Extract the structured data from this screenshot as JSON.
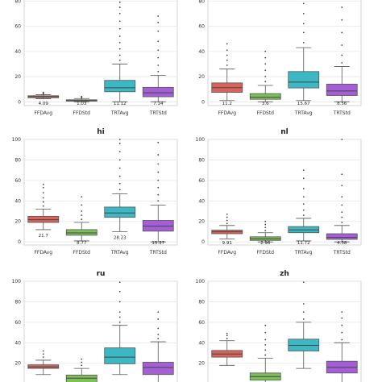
{
  "chart_data": [
    {
      "type": "box",
      "title": "",
      "ylim": [
        -3,
        100
      ],
      "yticks": [
        0,
        20,
        40,
        60,
        80
      ],
      "categories": [
        "FFDAvg",
        "FFDStd",
        "TRTAvg",
        "TRTStd"
      ],
      "colors": [
        "#d9635b",
        "#7fbf5a",
        "#3bb8c4",
        "#a45fd6"
      ],
      "boxes": [
        {
          "med": 4.09,
          "q1": 3.2,
          "q3": 4.8,
          "wlo": 2.4,
          "whi": 5.6,
          "out": [
            6.2,
            6.8,
            7.5
          ]
        },
        {
          "med": 1.03,
          "q1": 0.5,
          "q3": 1.6,
          "wlo": 0,
          "whi": 2.6,
          "out": [
            3.0,
            3.6,
            4.2
          ]
        },
        {
          "med": 11.12,
          "q1": 8.0,
          "q3": 17.0,
          "wlo": 0,
          "whi": 30.0,
          "out": [
            33,
            37,
            42,
            47,
            52,
            58,
            64,
            70,
            75,
            79
          ]
        },
        {
          "med": 7.14,
          "q1": 4.0,
          "q3": 11.5,
          "wlo": 0,
          "whi": 21.0,
          "out": [
            24,
            29,
            35,
            41,
            48,
            56,
            63,
            68
          ]
        }
      ],
      "medlabels": [
        "4.09",
        "1.03",
        "11.12",
        "7.14"
      ]
    },
    {
      "type": "box",
      "title": "",
      "ylim": [
        -3,
        100
      ],
      "yticks": [
        0,
        20,
        40,
        60,
        80
      ],
      "categories": [
        "FFDAvg",
        "FFDStd",
        "TRTAvg",
        "TRTStd"
      ],
      "colors": [
        "#d9635b",
        "#7fbf5a",
        "#3bb8c4",
        "#a45fd6"
      ],
      "boxes": [
        {
          "med": 11.2,
          "q1": 7.5,
          "q3": 15.0,
          "wlo": 1,
          "whi": 26.0,
          "out": [
            29,
            33,
            37,
            41,
            46
          ]
        },
        {
          "med": 3.6,
          "q1": 2.0,
          "q3": 6.5,
          "wlo": 0,
          "whi": 13.0,
          "out": [
            16,
            20,
            25,
            30,
            35,
            40
          ]
        },
        {
          "med": 15.67,
          "q1": 11.0,
          "q3": 24.0,
          "wlo": 1,
          "whi": 43.0,
          "out": [
            47,
            55,
            62,
            70,
            78,
            86,
            94,
            101
          ]
        },
        {
          "med": 8.56,
          "q1": 5.0,
          "q3": 14.0,
          "wlo": 0,
          "whi": 28.0,
          "out": [
            31,
            37,
            45,
            55,
            65,
            75,
            87
          ]
        }
      ],
      "medlabels": [
        "11.2",
        "3.6",
        "15.67",
        "8.56"
      ]
    },
    {
      "type": "box",
      "title": "hi",
      "ylim": [
        -3,
        100
      ],
      "yticks": [
        0,
        20,
        40,
        60,
        80,
        100
      ],
      "categories": [
        "FFDAvg",
        "FFDStd",
        "TRTAvg",
        "TRTStd"
      ],
      "colors": [
        "#d9635b",
        "#7fbf5a",
        "#3bb8c4",
        "#a45fd6"
      ],
      "boxes": [
        {
          "med": 21.7,
          "q1": 19.0,
          "q3": 25.0,
          "wlo": 12,
          "whi": 32.0,
          "out": [
            35,
            39,
            43,
            48,
            53,
            56
          ]
        },
        {
          "med": 8.77,
          "q1": 6.5,
          "q3": 12.0,
          "wlo": 1,
          "whi": 19.0,
          "out": [
            22,
            26,
            30,
            36,
            44
          ]
        },
        {
          "med": 28.23,
          "q1": 24.0,
          "q3": 34.0,
          "wlo": 10,
          "whi": 47.0,
          "out": [
            51,
            57,
            64,
            72,
            80,
            88,
            96,
            100
          ]
        },
        {
          "med": 15.37,
          "q1": 10.5,
          "q3": 21.0,
          "wlo": 0,
          "whi": 36.0,
          "out": [
            40,
            46,
            53,
            60,
            68,
            76,
            85,
            97
          ]
        }
      ],
      "medlabels": [
        "21.7",
        "8.77",
        "28.23",
        "15.37"
      ]
    },
    {
      "type": "box",
      "title": "nl",
      "ylim": [
        -3,
        100
      ],
      "yticks": [
        0,
        20,
        40,
        60,
        80,
        100
      ],
      "categories": [
        "FFDAvg",
        "FFDStd",
        "TRTAvg",
        "TRTStd"
      ],
      "colors": [
        "#d9635b",
        "#7fbf5a",
        "#3bb8c4",
        "#a45fd6"
      ],
      "boxes": [
        {
          "med": 9.91,
          "q1": 8.0,
          "q3": 11.5,
          "wlo": 3,
          "whi": 16.0,
          "out": [
            18,
            21,
            24,
            27
          ]
        },
        {
          "med": 2.96,
          "q1": 1.5,
          "q3": 5.0,
          "wlo": 0,
          "whi": 9.0,
          "out": [
            11,
            14,
            17,
            20
          ]
        },
        {
          "med": 11.72,
          "q1": 9.0,
          "q3": 15.0,
          "wlo": 1,
          "whi": 23.0,
          "out": [
            26,
            31,
            37,
            44,
            52,
            62,
            70
          ]
        },
        {
          "med": 4.38,
          "q1": 2.5,
          "q3": 8.0,
          "wlo": 0,
          "whi": 16.0,
          "out": [
            19,
            24,
            29,
            36,
            44,
            55,
            66,
            100
          ]
        }
      ],
      "medlabels": [
        "9.91",
        "2.96",
        "11.72",
        "4.38"
      ]
    },
    {
      "type": "box",
      "title": "ru",
      "ylim": [
        -3,
        100
      ],
      "yticks": [
        20,
        40,
        60,
        80,
        100
      ],
      "categories": [
        "FFDAvg",
        "FFDStd",
        "TRTAvg",
        "TRTStd"
      ],
      "colors": [
        "#d9635b",
        "#7fbf5a",
        "#3bb8c4",
        "#a45fd6"
      ],
      "boxes": [
        {
          "med": 16.5,
          "q1": 15.0,
          "q3": 18.5,
          "wlo": 9,
          "whi": 23.0,
          "out": [
            26,
            29,
            32
          ]
        },
        {
          "med": 5.5,
          "q1": 1.0,
          "q3": 8.5,
          "wlo": 0,
          "whi": 15.0,
          "out": [
            18,
            21,
            24
          ]
        },
        {
          "med": 26.0,
          "q1": 19.5,
          "q3": 35.0,
          "wlo": 9,
          "whi": 57.0,
          "out": [
            60,
            65,
            70,
            80,
            90,
            99
          ]
        },
        {
          "med": 16.0,
          "q1": 9.0,
          "q3": 21.0,
          "wlo": 0,
          "whi": 41.0,
          "out": [
            44,
            48,
            54,
            63,
            70
          ]
        }
      ],
      "medlabels": []
    },
    {
      "type": "box",
      "title": "zh",
      "ylim": [
        -3,
        100
      ],
      "yticks": [
        20,
        40,
        60,
        80,
        100
      ],
      "categories": [
        "FFDAvg",
        "FFDStd",
        "TRTAvg",
        "TRTStd"
      ],
      "colors": [
        "#d9635b",
        "#7fbf5a",
        "#3bb8c4",
        "#a45fd6"
      ],
      "boxes": [
        {
          "med": 29.0,
          "q1": 26.0,
          "q3": 32.5,
          "wlo": 18,
          "whi": 42.0,
          "out": [
            44,
            47,
            49
          ]
        },
        {
          "med": 7.0,
          "q1": 3.5,
          "q3": 10.5,
          "wlo": 0,
          "whi": 25.0,
          "out": [
            28,
            33,
            38,
            43,
            50,
            57
          ]
        },
        {
          "med": 37.5,
          "q1": 32.0,
          "q3": 43.5,
          "wlo": 15,
          "whi": 60.0,
          "out": [
            63,
            70,
            78,
            99
          ]
        },
        {
          "med": 16.0,
          "q1": 10.5,
          "q3": 22.0,
          "wlo": 0,
          "whi": 40.0,
          "out": [
            43,
            50,
            57,
            64,
            70
          ]
        }
      ],
      "medlabels": []
    }
  ]
}
